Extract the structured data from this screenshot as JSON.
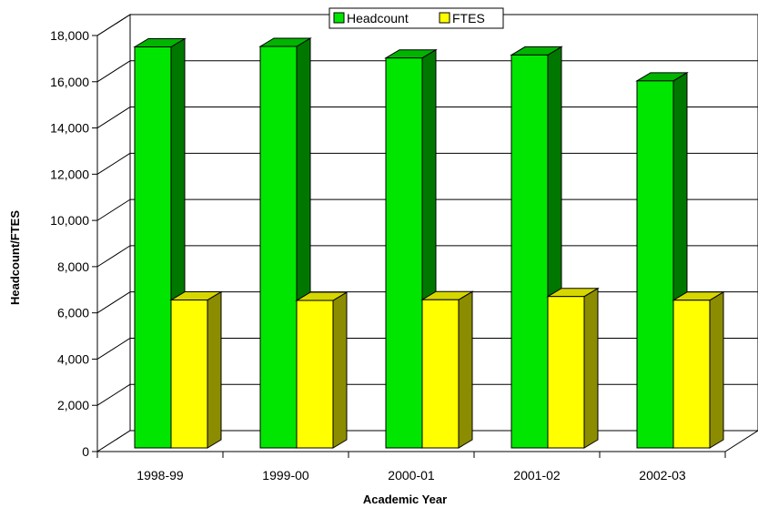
{
  "chart_data": {
    "type": "bar",
    "title": "",
    "xlabel": "Academic Year",
    "ylabel": "Headcount/FTES",
    "categories": [
      "1998-99",
      "1999-00",
      "2000-01",
      "2001-02",
      "2002-03"
    ],
    "series": [
      {
        "name": "Headcount",
        "values": [
          17350,
          17370,
          16870,
          17000,
          15880
        ]
      },
      {
        "name": "FTES",
        "values": [
          6400,
          6380,
          6410,
          6550,
          6390
        ]
      }
    ],
    "ylim": [
      0,
      18000
    ],
    "yticks": [
      "0",
      "2,000",
      "4,000",
      "6,000",
      "8,000",
      "10,000",
      "12,000",
      "14,000",
      "16,000",
      "18,000"
    ],
    "grid": true,
    "legend_position": "top-center",
    "colors": {
      "Headcount": {
        "front": "#00e600",
        "top": "#00b400",
        "side": "#007800"
      },
      "FTES": {
        "front": "#ffff00",
        "top": "#d7d700",
        "side": "#8c8c00"
      },
      "grid": "#000000",
      "wall": "#ffffff"
    }
  }
}
